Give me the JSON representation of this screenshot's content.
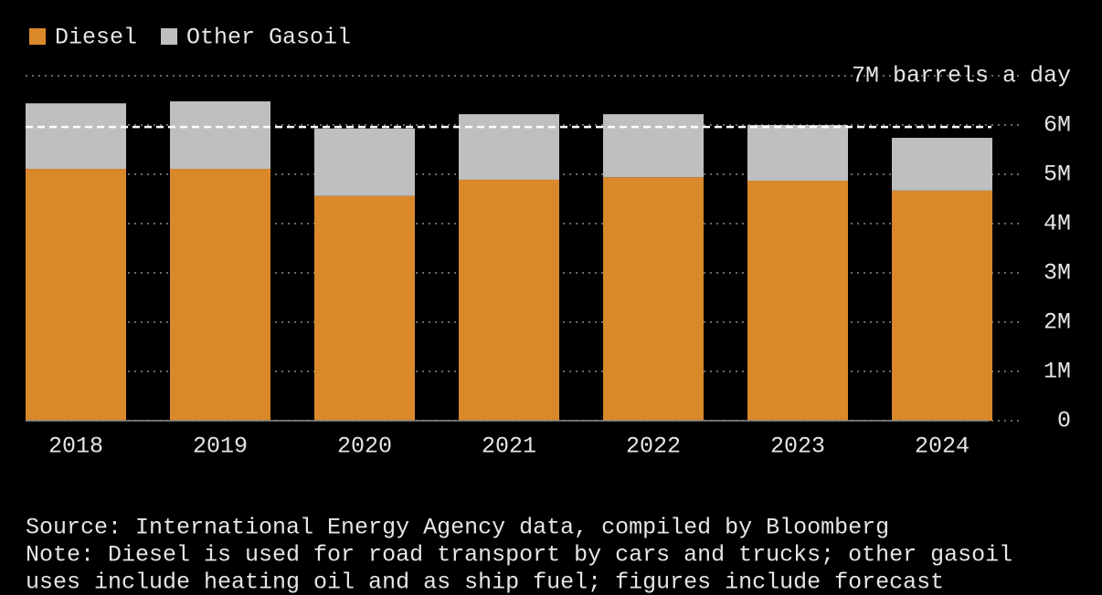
{
  "chart_data": {
    "type": "stacked_bar",
    "categories": [
      "2018",
      "2019",
      "2020",
      "2021",
      "2022",
      "2023",
      "2024"
    ],
    "series": [
      {
        "name": "Diesel",
        "color": "#d9882a",
        "values": [
          5.11,
          5.11,
          4.56,
          4.89,
          4.94,
          4.87,
          4.67
        ]
      },
      {
        "name": "Other Gasoil",
        "color": "#bfbfbf",
        "values": [
          1.33,
          1.37,
          1.37,
          1.33,
          1.28,
          1.13,
          1.07
        ]
      }
    ],
    "ylim": [
      0,
      7
    ],
    "yticks": [
      0,
      {
        "value": 1,
        "label": "1M"
      },
      {
        "value": 2,
        "label": "2M"
      },
      {
        "value": 3,
        "label": "3M"
      },
      {
        "value": 4,
        "label": "4M"
      },
      {
        "value": 5,
        "label": "5M"
      },
      {
        "value": 6,
        "label": "6M"
      },
      {
        "value": 7,
        "label": "7M barrels a day"
      }
    ],
    "grid": true,
    "reference_line": 5.96,
    "legend": "top-left",
    "notes": [
      "Source: International Energy Agency data, compiled by Bloomberg",
      "Note: Diesel is used for road transport by cars and trucks; other gasoil",
      "uses include heating oil and as ship fuel; figures include forecast"
    ]
  }
}
